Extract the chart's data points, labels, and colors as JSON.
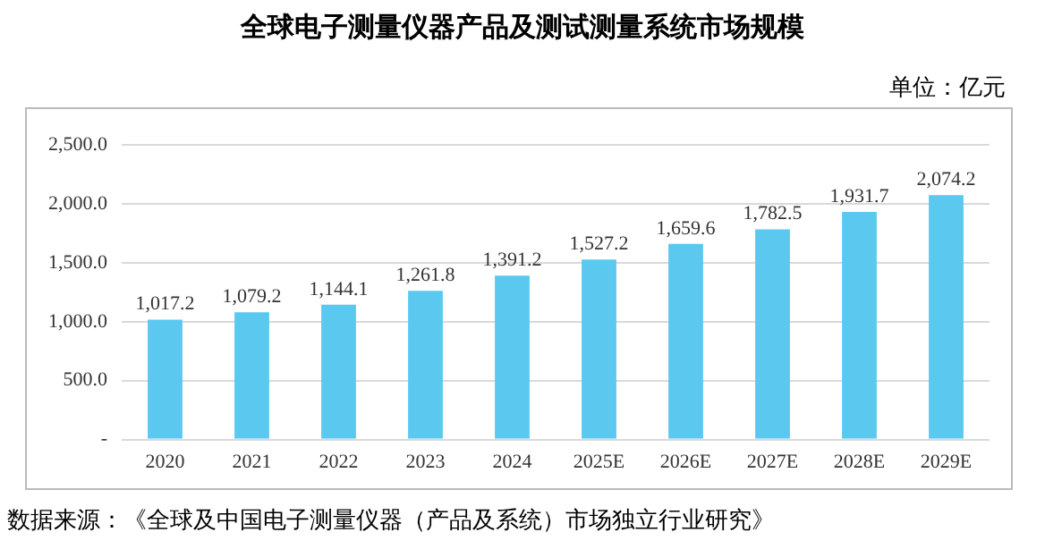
{
  "chart_data": {
    "type": "bar",
    "title": "全球电子测量仪器产品及测试测量系统市场规模",
    "annotations": [
      "单位：亿元",
      "数据来源：《全球及中国电子测量仪器（产品及系统）市场独立行业研究》"
    ],
    "categories": [
      "2020",
      "2021",
      "2022",
      "2023",
      "2024",
      "2025E",
      "2026E",
      "2027E",
      "2028E",
      "2029E"
    ],
    "values": [
      1017.2,
      1079.2,
      1144.1,
      1261.8,
      1391.2,
      1527.2,
      1659.6,
      1782.5,
      1931.7,
      2074.2
    ],
    "value_labels": [
      "1,017.2",
      "1,079.2",
      "1,144.1",
      "1,261.8",
      "1,391.2",
      "1,527.2",
      "1,659.6",
      "1,782.5",
      "1,931.7",
      "2,074.2"
    ],
    "color": "#5bc8f0",
    "ylim": [
      0,
      2500
    ],
    "yticks": [
      {
        "value": 0,
        "label": "-"
      },
      {
        "value": 500,
        "label": "500.0"
      },
      {
        "value": 1000,
        "label": "1,000.0"
      },
      {
        "value": 1500,
        "label": "1,500.0"
      },
      {
        "value": 2000,
        "label": "2,000.0"
      },
      {
        "value": 2500,
        "label": "2,500.0"
      }
    ],
    "grid": "y"
  }
}
